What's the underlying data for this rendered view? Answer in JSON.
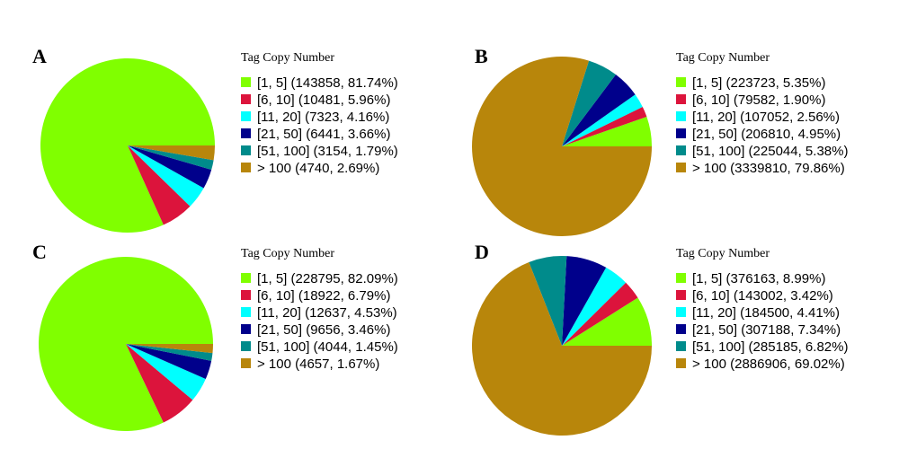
{
  "chart_data": [
    {
      "type": "pie",
      "title": "A",
      "legend_title": "Tag Copy Number",
      "categories": [
        "[1, 5] (143858, 81.74%)",
        "[6, 10] (10481, 5.96%)",
        "[11, 20] (7323, 4.16%)",
        "[21, 50] (6441, 3.66%)",
        "[51, 100] (3154, 1.79%)",
        "> 100 (4740, 2.69%)"
      ],
      "values": [
        81.74,
        5.96,
        4.16,
        3.66,
        1.79,
        2.69
      ],
      "colors": [
        "#80ff00",
        "#dc143c",
        "#00ffff",
        "#00008b",
        "#008b8b",
        "#b8860b"
      ]
    },
    {
      "type": "pie",
      "title": "B",
      "legend_title": "Tag Copy Number",
      "categories": [
        "[1, 5] (223723, 5.35%)",
        "[6, 10] (79582, 1.90%)",
        "[11, 20] (107052, 2.56%)",
        "[21, 50] (206810, 4.95%)",
        "[51, 100] (225044, 5.38%)",
        "> 100 (3339810, 79.86%)"
      ],
      "values": [
        5.35,
        1.9,
        2.56,
        4.95,
        5.38,
        79.86
      ],
      "colors": [
        "#80ff00",
        "#dc143c",
        "#00ffff",
        "#00008b",
        "#008b8b",
        "#b8860b"
      ]
    },
    {
      "type": "pie",
      "title": "C",
      "legend_title": "Tag Copy Number",
      "categories": [
        "[1, 5] (228795, 82.09%)",
        "[6, 10] (18922, 6.79%)",
        "[11, 20] (12637, 4.53%)",
        "[21, 50] (9656, 3.46%)",
        "[51, 100] (4044, 1.45%)",
        "> 100 (4657, 1.67%)"
      ],
      "values": [
        82.09,
        6.79,
        4.53,
        3.46,
        1.45,
        1.67
      ],
      "colors": [
        "#80ff00",
        "#dc143c",
        "#00ffff",
        "#00008b",
        "#008b8b",
        "#b8860b"
      ]
    },
    {
      "type": "pie",
      "title": "D",
      "legend_title": "Tag Copy Number",
      "categories": [
        "[1, 5] (376163, 8.99%)",
        "[6, 10] (143002, 3.42%)",
        "[11, 20] (184500, 4.41%)",
        "[21, 50] (307188, 7.34%)",
        "[51, 100] (285185, 6.82%)",
        "> 100 (2886906, 69.02%)"
      ],
      "values": [
        8.99,
        3.42,
        4.41,
        7.34,
        6.82,
        69.02
      ],
      "colors": [
        "#80ff00",
        "#dc143c",
        "#00ffff",
        "#00008b",
        "#008b8b",
        "#b8860b"
      ]
    }
  ]
}
